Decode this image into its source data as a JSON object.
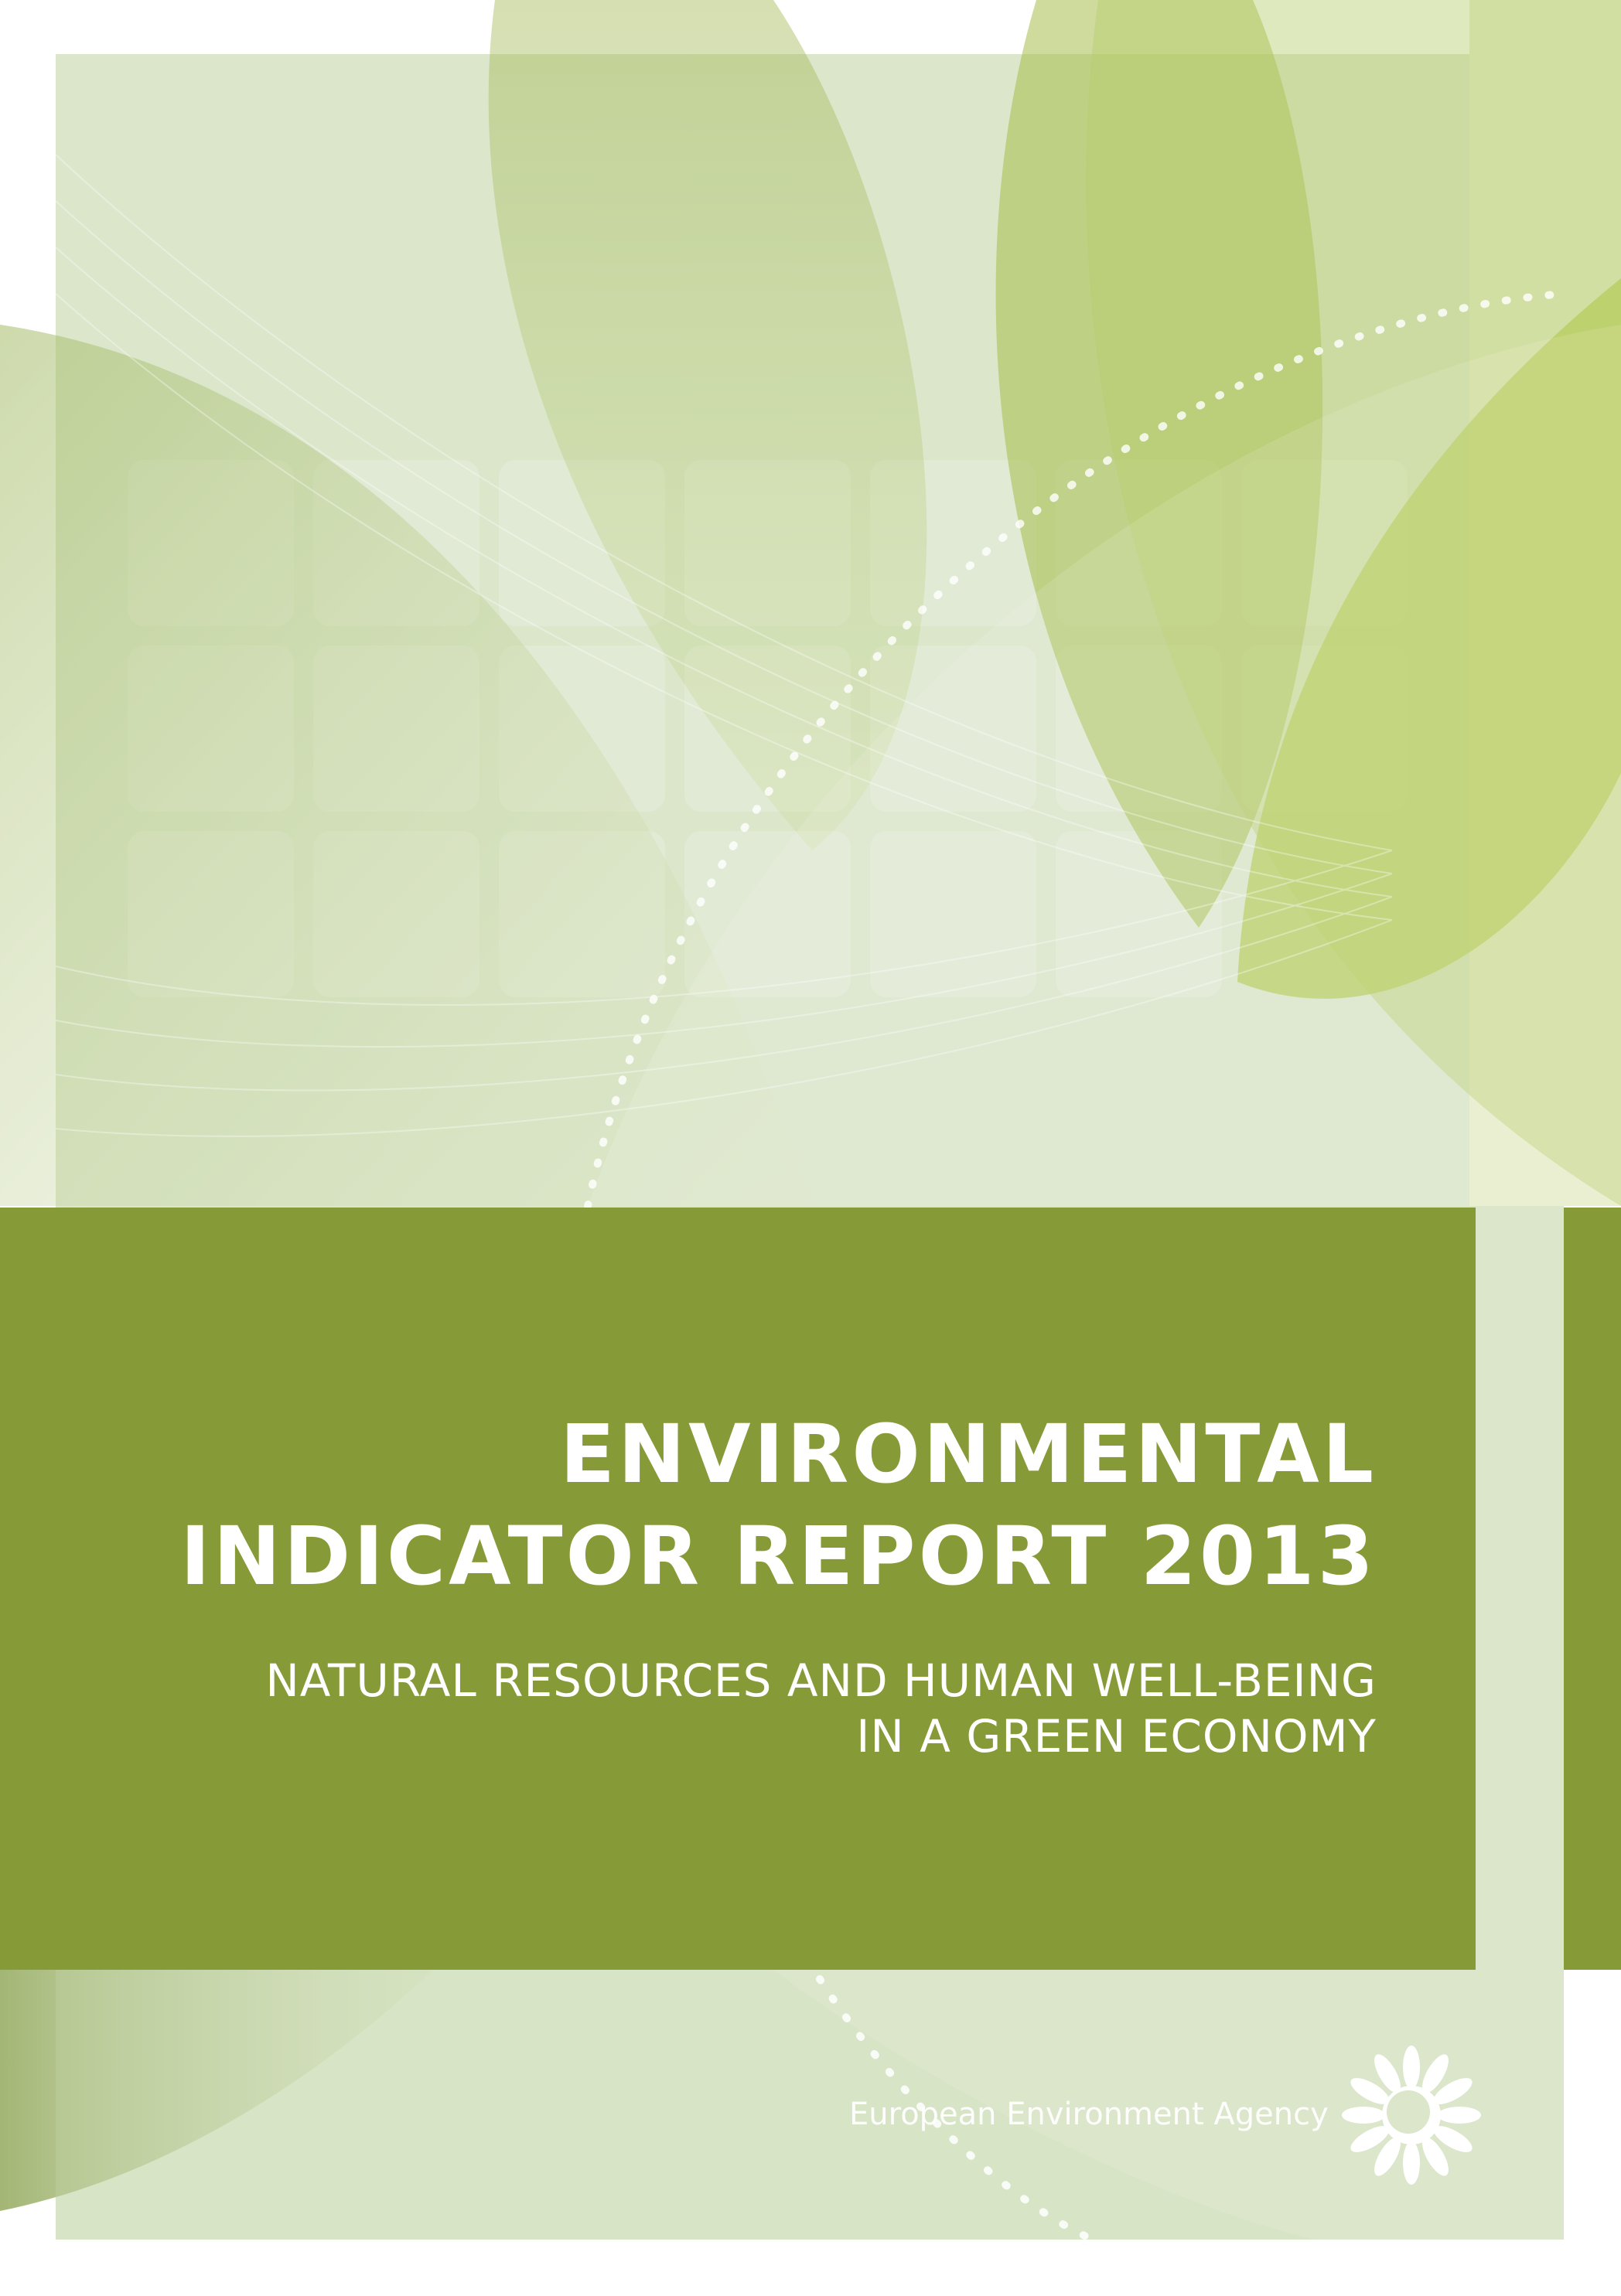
{
  "cover": {
    "title_line1": "ENVIRONMENTAL",
    "title_line2": "INDICATOR REPORT 2013",
    "subtitle_line1": "NATURAL RESOURCES AND HUMAN WELL-BEING",
    "subtitle_line2": "IN A GREEN ECONOMY",
    "publisher": "European Environment Agency",
    "logo_icon": "eea-sun-logo-icon"
  },
  "colors": {
    "band": "#879a38",
    "panel": "#dbe6cb",
    "leaf_light": "#c9d99c",
    "leaf_bright": "#b5cc5c"
  }
}
